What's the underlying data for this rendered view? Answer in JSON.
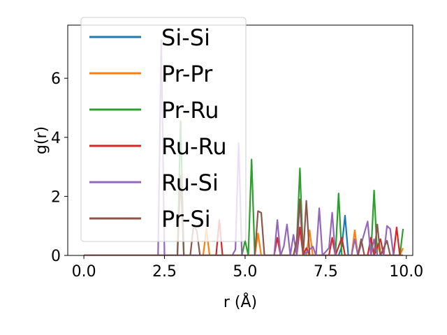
{
  "chart_data": {
    "type": "line",
    "xlabel": "r (Å)",
    "ylabel": "g(r)",
    "xlim": [
      -0.5,
      10.2
    ],
    "ylim": [
      0,
      7.8
    ],
    "xticks": [
      0.0,
      2.5,
      5.0,
      7.5,
      10.0
    ],
    "xtick_labels": [
      "0.0",
      "2.5",
      "5.0",
      "7.5",
      "10.0"
    ],
    "yticks": [
      0,
      2,
      4,
      6
    ],
    "ytick_labels": [
      "0",
      "2",
      "4",
      "6"
    ],
    "grid": false,
    "legend_position": "upper-left",
    "series": [
      {
        "name": "Si-Si",
        "color": "#1f77b4",
        "points": [
          [
            0,
            0
          ],
          [
            7.9,
            0
          ],
          [
            8.0,
            0.3
          ],
          [
            8.1,
            1.35
          ],
          [
            8.2,
            0
          ],
          [
            9.9,
            0
          ]
        ]
      },
      {
        "name": "Pr-Pr",
        "color": "#ff7f0e",
        "points": [
          [
            0,
            0
          ],
          [
            3.7,
            0
          ],
          [
            3.8,
            0.9
          ],
          [
            3.9,
            0
          ],
          [
            5.3,
            0
          ],
          [
            5.4,
            0.75
          ],
          [
            5.5,
            0
          ],
          [
            6.9,
            0
          ],
          [
            7.0,
            0.85
          ],
          [
            7.1,
            0
          ],
          [
            8.3,
            0
          ],
          [
            8.4,
            0.85
          ],
          [
            8.5,
            0
          ],
          [
            9.0,
            0
          ],
          [
            9.1,
            0.4
          ],
          [
            9.2,
            0
          ],
          [
            9.8,
            0
          ],
          [
            9.9,
            0.25
          ]
        ]
      },
      {
        "name": "Pr-Ru",
        "color": "#2ca02c",
        "points": [
          [
            0,
            0
          ],
          [
            2.9,
            0
          ],
          [
            3.0,
            4.55
          ],
          [
            3.1,
            0
          ],
          [
            4.9,
            0
          ],
          [
            5.0,
            0.5
          ],
          [
            5.1,
            0
          ],
          [
            5.2,
            3.25
          ],
          [
            5.3,
            0
          ],
          [
            6.5,
            0
          ],
          [
            6.6,
            0.4
          ],
          [
            6.7,
            2.95
          ],
          [
            6.8,
            0
          ],
          [
            7.8,
            0
          ],
          [
            7.9,
            2.1
          ],
          [
            8.0,
            0
          ],
          [
            8.9,
            0
          ],
          [
            9.0,
            2.2
          ],
          [
            9.1,
            0
          ],
          [
            9.8,
            0
          ],
          [
            9.9,
            0.9
          ]
        ]
      },
      {
        "name": "Ru-Ru",
        "color": "#d62728",
        "points": [
          [
            0,
            0
          ],
          [
            4.1,
            0
          ],
          [
            4.2,
            1.2
          ],
          [
            4.3,
            0
          ],
          [
            5.9,
            0
          ],
          [
            6.0,
            0.6
          ],
          [
            6.1,
            0
          ],
          [
            6.6,
            0
          ],
          [
            6.7,
            0.95
          ],
          [
            6.8,
            0
          ],
          [
            6.9,
            0.25
          ],
          [
            7.0,
            0
          ],
          [
            7.6,
            0
          ],
          [
            7.7,
            0.6
          ],
          [
            7.8,
            0
          ],
          [
            8.0,
            0.6
          ],
          [
            8.1,
            0
          ],
          [
            8.8,
            0
          ],
          [
            8.9,
            0.6
          ],
          [
            9.0,
            0
          ],
          [
            9.2,
            0.55
          ],
          [
            9.3,
            0
          ],
          [
            9.6,
            0
          ],
          [
            9.7,
            0.95
          ],
          [
            9.8,
            0
          ]
        ]
      },
      {
        "name": "Ru-Si",
        "color": "#9467bd",
        "points": [
          [
            0,
            0
          ],
          [
            2.3,
            0
          ],
          [
            2.4,
            7.3
          ],
          [
            2.5,
            0
          ],
          [
            4.6,
            0
          ],
          [
            4.7,
            0.2
          ],
          [
            4.8,
            3.8
          ],
          [
            4.9,
            0
          ],
          [
            5.9,
            0
          ],
          [
            6.0,
            1.2
          ],
          [
            6.1,
            0
          ],
          [
            6.2,
            0.3
          ],
          [
            6.3,
            1.05
          ],
          [
            6.4,
            0
          ],
          [
            6.5,
            0.7
          ],
          [
            6.6,
            0
          ],
          [
            6.7,
            1.9
          ],
          [
            6.8,
            0
          ],
          [
            7.1,
            0.3
          ],
          [
            7.2,
            0
          ],
          [
            7.3,
            1.6
          ],
          [
            7.4,
            0
          ],
          [
            7.6,
            0.25
          ],
          [
            7.7,
            1.45
          ],
          [
            7.8,
            0
          ],
          [
            8.3,
            0
          ],
          [
            8.4,
            0.55
          ],
          [
            8.5,
            0
          ],
          [
            8.8,
            1.15
          ],
          [
            8.9,
            0
          ],
          [
            9.0,
            0.55
          ],
          [
            9.1,
            0
          ],
          [
            9.3,
            0
          ],
          [
            9.4,
            1.0
          ],
          [
            9.5,
            0.9
          ],
          [
            9.6,
            0
          ],
          [
            9.9,
            0
          ]
        ]
      },
      {
        "name": "Pr-Si",
        "color": "#8c564b",
        "points": [
          [
            0,
            0
          ],
          [
            2.9,
            0
          ],
          [
            3.0,
            2.7
          ],
          [
            3.1,
            0
          ],
          [
            3.3,
            0
          ],
          [
            3.4,
            1.0
          ],
          [
            3.5,
            0.85
          ],
          [
            3.6,
            0
          ],
          [
            5.3,
            0
          ],
          [
            5.4,
            1.5
          ],
          [
            5.5,
            1.45
          ],
          [
            5.6,
            0
          ],
          [
            6.5,
            0
          ],
          [
            6.6,
            0.5
          ],
          [
            6.7,
            1.9
          ],
          [
            6.8,
            0
          ],
          [
            6.9,
            1.85
          ],
          [
            7.0,
            0
          ],
          [
            8.5,
            0
          ],
          [
            8.6,
            0.55
          ],
          [
            8.7,
            0
          ],
          [
            9.0,
            0
          ],
          [
            9.1,
            1.05
          ],
          [
            9.2,
            0
          ],
          [
            9.4,
            0.5
          ],
          [
            9.5,
            0
          ],
          [
            9.9,
            0
          ]
        ]
      }
    ]
  }
}
